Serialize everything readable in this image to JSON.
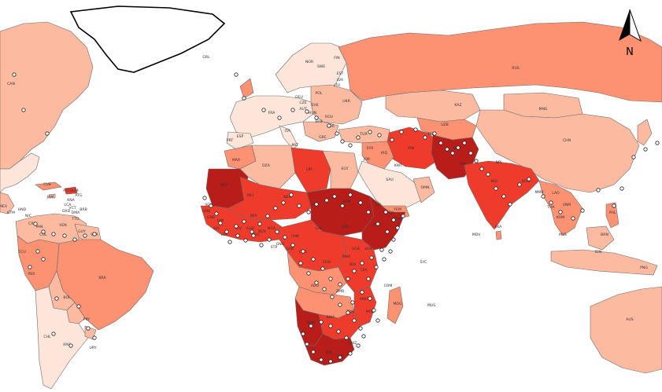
{
  "map": {
    "colors": {
      "level_0": "#fee5d9",
      "level_1": "#fcbba1",
      "level_2": "#fc9272",
      "level_3": "#ef3b2c",
      "level_4": "#b81d1a",
      "site_marker": "#ffffff"
    },
    "north_arrow": {
      "icon": "north-arrow-icon",
      "label": "N"
    },
    "country_labels": [
      "CAN",
      "GRL",
      "RUS",
      "FIN",
      "NOR",
      "SWE",
      "EST",
      "LVA",
      "LTU",
      "POL",
      "UKR",
      "DEU",
      "FRA",
      "CZE",
      "SVK",
      "AUT",
      "HUN",
      "ROU",
      "SRB",
      "BGR",
      "ITA",
      "GRC",
      "TUR",
      "ESP",
      "PRT",
      "MLT",
      "KAZ",
      "MNG",
      "CHN",
      "UZB",
      "TKM",
      "AFG",
      "PAK",
      "NPL",
      "IND",
      "BGD",
      "MMR",
      "LAO",
      "VNM",
      "THA",
      "KHM",
      "PHL",
      "MYS",
      "BRN",
      "IDN",
      "PNG",
      "LKA",
      "MDV",
      "IRN",
      "IRQ",
      "SYR",
      "JOR",
      "SAU",
      "YEM",
      "OMN",
      "KWT",
      "MAR",
      "DZA",
      "LBY",
      "EGY",
      "MRT",
      "MLI",
      "NER",
      "TCD",
      "SDN",
      "ETH",
      "SOM",
      "KEN",
      "UGA",
      "TZA",
      "COD",
      "COG",
      "CMR",
      "NGA",
      "GHA",
      "CIV",
      "SEN",
      "GIN",
      "SLE",
      "LBR",
      "BFA",
      "CAF",
      "SSD",
      "ERI",
      "DJI",
      "GAB",
      "GNQ",
      "STP",
      "AGO",
      "ZMB",
      "ZWE",
      "MWI",
      "MOZ",
      "MDG",
      "NAM",
      "BWA",
      "ZAF",
      "LSO",
      "SWZ",
      "COM",
      "SYC",
      "MUS",
      "MEX",
      "GTM",
      "HND",
      "NIC",
      "CRI",
      "PAN",
      "CUB",
      "HTI",
      "DOM",
      "JAM",
      "ATG",
      "KNA",
      "VCT",
      "BRB",
      "DMA",
      "LCA",
      "GRD",
      "TTO",
      "COL",
      "VEN",
      "GUY",
      "SUR",
      "ECU",
      "PER",
      "BRA",
      "BOL",
      "PRY",
      "CHL",
      "ARG",
      "URY",
      "AUS",
      "GMB",
      "GNB",
      "BEN",
      "TGO",
      "BDI",
      "RWA"
    ]
  }
}
